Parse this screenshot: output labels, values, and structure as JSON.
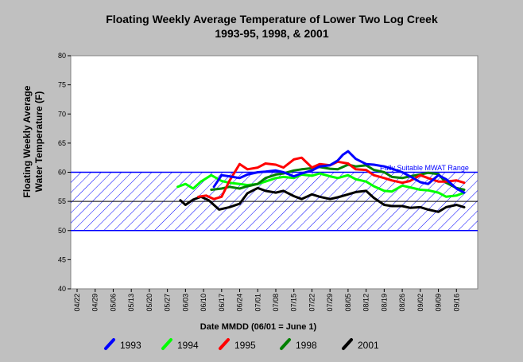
{
  "chart_data": {
    "type": "line",
    "title": "Floating Weekly Average Temperature of Lower Two Log Creek",
    "subtitle": "1993-95, 1998, & 2001",
    "xlabel": "Date MMDD (06/01 = June 1)",
    "ylabel_line1": "Floating Weekly Average",
    "ylabel_line2": "Water Temperature (F)",
    "ylim": [
      40,
      80
    ],
    "yticks": [
      40,
      45,
      50,
      55,
      60,
      65,
      70,
      75,
      80
    ],
    "ytick_labels": [
      "40",
      "45",
      "50",
      "55",
      "60",
      "65",
      "70",
      "75",
      "80"
    ],
    "xtick_labels": [
      "04/22",
      "04/29",
      "05/06",
      "05/13",
      "05/20",
      "05/27",
      "06/03",
      "06/10",
      "06/17",
      "06/24",
      "07/01",
      "07/08",
      "07/15",
      "07/22",
      "07/29",
      "08/05",
      "08/12",
      "08/19",
      "08/26",
      "09/02",
      "09/09",
      "09/16"
    ],
    "xtick_dates": [
      "04-22",
      "04-29",
      "05-06",
      "05-13",
      "05-20",
      "05-27",
      "06-03",
      "06-10",
      "06-17",
      "06-24",
      "07-01",
      "07-08",
      "07-15",
      "07-22",
      "07-29",
      "08-05",
      "08-12",
      "08-19",
      "08-26",
      "09-02",
      "09-09",
      "09-16"
    ],
    "xlim": [
      "04-22",
      "09-23"
    ],
    "grid": false,
    "legend_position": "bottom",
    "band": {
      "label": "Fully Suitable MWAT Range",
      "lower": 50,
      "upper": 60,
      "midline": 55,
      "color": "#0000ff"
    },
    "series": [
      {
        "name": "1993",
        "color": "#0000ff",
        "x": [
          "06-14",
          "06-17",
          "06-20",
          "06-24",
          "06-27",
          "07-01",
          "07-04",
          "07-08",
          "07-11",
          "07-15",
          "07-18",
          "07-22",
          "07-25",
          "07-29",
          "08-01",
          "08-03",
          "08-05",
          "08-08",
          "08-12",
          "08-15",
          "08-19",
          "08-22",
          "08-26",
          "08-29",
          "09-02",
          "09-05",
          "09-09",
          "09-12",
          "09-16",
          "09-19"
        ],
        "y": [
          57.5,
          59.5,
          59.3,
          59.0,
          59.6,
          60.0,
          60.1,
          60.3,
          60.0,
          59.3,
          59.8,
          60.3,
          61.0,
          61.2,
          62.0,
          63.0,
          63.6,
          62.3,
          61.4,
          61.3,
          61.0,
          60.6,
          60.0,
          59.3,
          58.3,
          58.0,
          59.5,
          58.8,
          57.2,
          56.5
        ]
      },
      {
        "name": "1994",
        "color": "#00ff00",
        "x": [
          "05-31",
          "06-03",
          "06-06",
          "06-09",
          "06-13",
          "06-17",
          "06-20",
          "06-24",
          "06-27",
          "07-01",
          "07-04",
          "07-08",
          "07-11",
          "07-15",
          "07-18",
          "07-22",
          "07-25",
          "07-29",
          "08-01",
          "08-05",
          "08-08",
          "08-12",
          "08-15",
          "08-19",
          "08-22",
          "08-26",
          "08-29",
          "09-02",
          "09-05",
          "09-09",
          "09-12",
          "09-16",
          "09-19"
        ],
        "y": [
          57.5,
          58.0,
          57.2,
          58.4,
          59.5,
          58.5,
          58.2,
          58.0,
          57.8,
          58.0,
          58.4,
          59.0,
          59.2,
          59.0,
          59.6,
          59.4,
          59.8,
          59.3,
          59.0,
          59.5,
          58.8,
          58.4,
          57.6,
          56.8,
          56.7,
          57.7,
          57.4,
          57.0,
          56.9,
          56.5,
          55.8,
          56.0,
          56.5
        ]
      },
      {
        "name": "1995",
        "color": "#ff0000",
        "x": [
          "06-08",
          "06-11",
          "06-14",
          "06-17",
          "06-20",
          "06-24",
          "06-27",
          "07-01",
          "07-04",
          "07-08",
          "07-11",
          "07-15",
          "07-18",
          "07-22",
          "07-25",
          "07-29",
          "08-01",
          "08-05",
          "08-08",
          "08-12",
          "08-15",
          "08-19",
          "08-22",
          "08-26",
          "08-29",
          "09-02",
          "09-05",
          "09-09",
          "09-12",
          "09-16",
          "09-19"
        ],
        "y": [
          55.8,
          56.0,
          55.4,
          55.8,
          58.5,
          61.4,
          60.5,
          60.8,
          61.5,
          61.3,
          60.8,
          62.2,
          62.5,
          60.8,
          61.4,
          61.2,
          61.8,
          61.5,
          60.5,
          60.4,
          59.5,
          59.0,
          58.6,
          58.2,
          58.5,
          59.5,
          59.0,
          58.4,
          58.4,
          58.6,
          58.2
        ]
      },
      {
        "name": "1998",
        "color": "#008000",
        "x": [
          "06-13",
          "06-17",
          "06-20",
          "06-24",
          "06-27",
          "07-01",
          "07-04",
          "07-08",
          "07-11",
          "07-15",
          "07-18",
          "07-22",
          "07-25",
          "07-29",
          "08-01",
          "08-05",
          "08-08",
          "08-12",
          "08-15",
          "08-19",
          "08-22",
          "08-26",
          "08-29",
          "09-02",
          "09-05",
          "09-09",
          "09-12",
          "09-16",
          "09-19"
        ],
        "y": [
          57.0,
          57.2,
          57.5,
          57.2,
          57.6,
          58.0,
          59.0,
          59.6,
          59.8,
          60.3,
          60.5,
          60.7,
          60.9,
          60.6,
          60.5,
          61.3,
          61.0,
          61.2,
          60.4,
          60.0,
          59.2,
          59.0,
          59.3,
          59.6,
          59.9,
          59.7,
          58.2,
          57.3,
          57.0
        ]
      },
      {
        "name": "2001",
        "color": "#000000",
        "x": [
          "06-01",
          "06-03",
          "06-06",
          "06-09",
          "06-12",
          "06-16",
          "06-20",
          "06-24",
          "06-27",
          "07-01",
          "07-04",
          "07-08",
          "07-11",
          "07-15",
          "07-18",
          "07-22",
          "07-25",
          "07-29",
          "08-01",
          "08-05",
          "08-08",
          "08-12",
          "08-15",
          "08-19",
          "08-22",
          "08-26",
          "08-29",
          "09-02",
          "09-05",
          "09-09",
          "09-12",
          "09-16",
          "09-19"
        ],
        "y": [
          55.2,
          54.4,
          55.3,
          55.8,
          55.2,
          53.6,
          54.0,
          54.6,
          56.4,
          57.3,
          56.8,
          56.5,
          56.8,
          55.9,
          55.4,
          56.2,
          55.8,
          55.4,
          55.7,
          56.2,
          56.6,
          56.8,
          55.6,
          54.4,
          54.2,
          54.2,
          53.9,
          54.0,
          53.6,
          53.2,
          54.0,
          54.4,
          54.0
        ]
      }
    ]
  }
}
